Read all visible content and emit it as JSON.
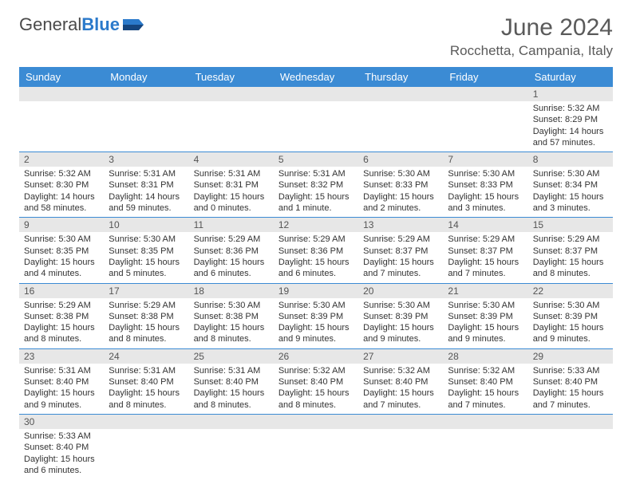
{
  "brand": {
    "part1": "General",
    "part2": "Blue"
  },
  "title": "June 2024",
  "location": "Rocchetta, Campania, Italy",
  "colors": {
    "header_bg": "#3b8bd4",
    "header_fg": "#ffffff",
    "daynum_bg": "#e7e7e7",
    "border": "#3b8bd4",
    "brand_accent": "#2b7acb",
    "text": "#333333",
    "title_text": "#5a5a5a"
  },
  "day_headers": [
    "Sunday",
    "Monday",
    "Tuesday",
    "Wednesday",
    "Thursday",
    "Friday",
    "Saturday"
  ],
  "weeks": [
    [
      {
        "n": "",
        "sr": "",
        "ss": "",
        "dl": ""
      },
      {
        "n": "",
        "sr": "",
        "ss": "",
        "dl": ""
      },
      {
        "n": "",
        "sr": "",
        "ss": "",
        "dl": ""
      },
      {
        "n": "",
        "sr": "",
        "ss": "",
        "dl": ""
      },
      {
        "n": "",
        "sr": "",
        "ss": "",
        "dl": ""
      },
      {
        "n": "",
        "sr": "",
        "ss": "",
        "dl": ""
      },
      {
        "n": "1",
        "sr": "Sunrise: 5:32 AM",
        "ss": "Sunset: 8:29 PM",
        "dl": "Daylight: 14 hours and 57 minutes."
      }
    ],
    [
      {
        "n": "2",
        "sr": "Sunrise: 5:32 AM",
        "ss": "Sunset: 8:30 PM",
        "dl": "Daylight: 14 hours and 58 minutes."
      },
      {
        "n": "3",
        "sr": "Sunrise: 5:31 AM",
        "ss": "Sunset: 8:31 PM",
        "dl": "Daylight: 14 hours and 59 minutes."
      },
      {
        "n": "4",
        "sr": "Sunrise: 5:31 AM",
        "ss": "Sunset: 8:31 PM",
        "dl": "Daylight: 15 hours and 0 minutes."
      },
      {
        "n": "5",
        "sr": "Sunrise: 5:31 AM",
        "ss": "Sunset: 8:32 PM",
        "dl": "Daylight: 15 hours and 1 minute."
      },
      {
        "n": "6",
        "sr": "Sunrise: 5:30 AM",
        "ss": "Sunset: 8:33 PM",
        "dl": "Daylight: 15 hours and 2 minutes."
      },
      {
        "n": "7",
        "sr": "Sunrise: 5:30 AM",
        "ss": "Sunset: 8:33 PM",
        "dl": "Daylight: 15 hours and 3 minutes."
      },
      {
        "n": "8",
        "sr": "Sunrise: 5:30 AM",
        "ss": "Sunset: 8:34 PM",
        "dl": "Daylight: 15 hours and 3 minutes."
      }
    ],
    [
      {
        "n": "9",
        "sr": "Sunrise: 5:30 AM",
        "ss": "Sunset: 8:35 PM",
        "dl": "Daylight: 15 hours and 4 minutes."
      },
      {
        "n": "10",
        "sr": "Sunrise: 5:30 AM",
        "ss": "Sunset: 8:35 PM",
        "dl": "Daylight: 15 hours and 5 minutes."
      },
      {
        "n": "11",
        "sr": "Sunrise: 5:29 AM",
        "ss": "Sunset: 8:36 PM",
        "dl": "Daylight: 15 hours and 6 minutes."
      },
      {
        "n": "12",
        "sr": "Sunrise: 5:29 AM",
        "ss": "Sunset: 8:36 PM",
        "dl": "Daylight: 15 hours and 6 minutes."
      },
      {
        "n": "13",
        "sr": "Sunrise: 5:29 AM",
        "ss": "Sunset: 8:37 PM",
        "dl": "Daylight: 15 hours and 7 minutes."
      },
      {
        "n": "14",
        "sr": "Sunrise: 5:29 AM",
        "ss": "Sunset: 8:37 PM",
        "dl": "Daylight: 15 hours and 7 minutes."
      },
      {
        "n": "15",
        "sr": "Sunrise: 5:29 AM",
        "ss": "Sunset: 8:37 PM",
        "dl": "Daylight: 15 hours and 8 minutes."
      }
    ],
    [
      {
        "n": "16",
        "sr": "Sunrise: 5:29 AM",
        "ss": "Sunset: 8:38 PM",
        "dl": "Daylight: 15 hours and 8 minutes."
      },
      {
        "n": "17",
        "sr": "Sunrise: 5:29 AM",
        "ss": "Sunset: 8:38 PM",
        "dl": "Daylight: 15 hours and 8 minutes."
      },
      {
        "n": "18",
        "sr": "Sunrise: 5:30 AM",
        "ss": "Sunset: 8:38 PM",
        "dl": "Daylight: 15 hours and 8 minutes."
      },
      {
        "n": "19",
        "sr": "Sunrise: 5:30 AM",
        "ss": "Sunset: 8:39 PM",
        "dl": "Daylight: 15 hours and 9 minutes."
      },
      {
        "n": "20",
        "sr": "Sunrise: 5:30 AM",
        "ss": "Sunset: 8:39 PM",
        "dl": "Daylight: 15 hours and 9 minutes."
      },
      {
        "n": "21",
        "sr": "Sunrise: 5:30 AM",
        "ss": "Sunset: 8:39 PM",
        "dl": "Daylight: 15 hours and 9 minutes."
      },
      {
        "n": "22",
        "sr": "Sunrise: 5:30 AM",
        "ss": "Sunset: 8:39 PM",
        "dl": "Daylight: 15 hours and 9 minutes."
      }
    ],
    [
      {
        "n": "23",
        "sr": "Sunrise: 5:31 AM",
        "ss": "Sunset: 8:40 PM",
        "dl": "Daylight: 15 hours and 9 minutes."
      },
      {
        "n": "24",
        "sr": "Sunrise: 5:31 AM",
        "ss": "Sunset: 8:40 PM",
        "dl": "Daylight: 15 hours and 8 minutes."
      },
      {
        "n": "25",
        "sr": "Sunrise: 5:31 AM",
        "ss": "Sunset: 8:40 PM",
        "dl": "Daylight: 15 hours and 8 minutes."
      },
      {
        "n": "26",
        "sr": "Sunrise: 5:32 AM",
        "ss": "Sunset: 8:40 PM",
        "dl": "Daylight: 15 hours and 8 minutes."
      },
      {
        "n": "27",
        "sr": "Sunrise: 5:32 AM",
        "ss": "Sunset: 8:40 PM",
        "dl": "Daylight: 15 hours and 7 minutes."
      },
      {
        "n": "28",
        "sr": "Sunrise: 5:32 AM",
        "ss": "Sunset: 8:40 PM",
        "dl": "Daylight: 15 hours and 7 minutes."
      },
      {
        "n": "29",
        "sr": "Sunrise: 5:33 AM",
        "ss": "Sunset: 8:40 PM",
        "dl": "Daylight: 15 hours and 7 minutes."
      }
    ],
    [
      {
        "n": "30",
        "sr": "Sunrise: 5:33 AM",
        "ss": "Sunset: 8:40 PM",
        "dl": "Daylight: 15 hours and 6 minutes."
      },
      {
        "n": "",
        "sr": "",
        "ss": "",
        "dl": ""
      },
      {
        "n": "",
        "sr": "",
        "ss": "",
        "dl": ""
      },
      {
        "n": "",
        "sr": "",
        "ss": "",
        "dl": ""
      },
      {
        "n": "",
        "sr": "",
        "ss": "",
        "dl": ""
      },
      {
        "n": "",
        "sr": "",
        "ss": "",
        "dl": ""
      },
      {
        "n": "",
        "sr": "",
        "ss": "",
        "dl": ""
      }
    ]
  ]
}
